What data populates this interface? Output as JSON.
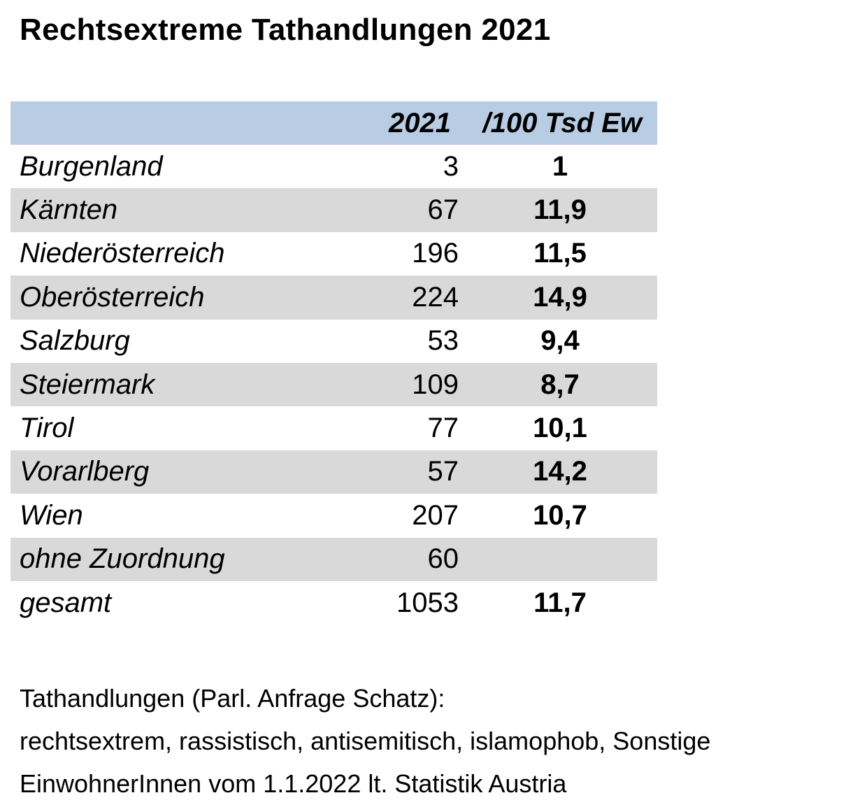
{
  "title": "Rechtsextreme Tathandlungen 2021",
  "table": {
    "header": {
      "year_col": "2021",
      "rate_col": "/100 Tsd Ew"
    },
    "rows": [
      {
        "name": "Burgenland",
        "count": "3",
        "rate": "1"
      },
      {
        "name": "Kärnten",
        "count": "67",
        "rate": "11,9"
      },
      {
        "name": "Niederösterreich",
        "count": "196",
        "rate": "11,5"
      },
      {
        "name": "Oberösterreich",
        "count": "224",
        "rate": "14,9"
      },
      {
        "name": "Salzburg",
        "count": "53",
        "rate": "9,4"
      },
      {
        "name": "Steiermark",
        "count": "109",
        "rate": "8,7"
      },
      {
        "name": "Tirol",
        "count": "77",
        "rate": "10,1"
      },
      {
        "name": "Vorarlberg",
        "count": "57",
        "rate": "14,2"
      },
      {
        "name": "Wien",
        "count": "207",
        "rate": "10,7"
      },
      {
        "name": "ohne Zuordnung",
        "count": "60",
        "rate": ""
      },
      {
        "name": "gesamt",
        "count": "1053",
        "rate": "11,7"
      }
    ]
  },
  "footnotes": [
    "Tathandlungen (Parl. Anfrage Schatz):",
    "rechtsextrem, rassistisch, antisemitisch, islamophob, Sonstige",
    "EinwohnerInnen vom 1.1.2022 lt. Statistik Austria"
  ],
  "colors": {
    "header_bg": "#b8cce4",
    "stripe_bg": "#d9d9d9",
    "text": "#000000"
  }
}
